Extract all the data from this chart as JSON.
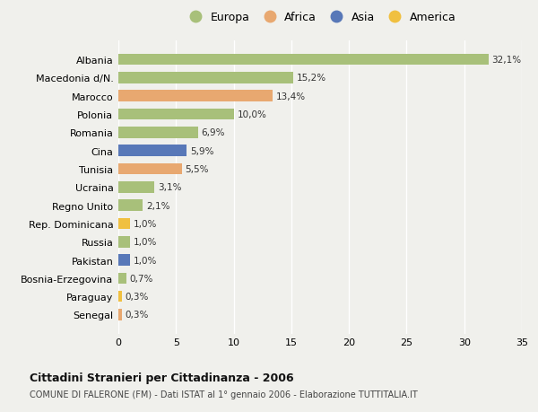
{
  "countries": [
    "Albania",
    "Macedonia d/N.",
    "Marocco",
    "Polonia",
    "Romania",
    "Cina",
    "Tunisia",
    "Ucraina",
    "Regno Unito",
    "Rep. Dominicana",
    "Russia",
    "Pakistan",
    "Bosnia-Erzegovina",
    "Paraguay",
    "Senegal"
  ],
  "values": [
    32.1,
    15.2,
    13.4,
    10.0,
    6.9,
    5.9,
    5.5,
    3.1,
    2.1,
    1.0,
    1.0,
    1.0,
    0.7,
    0.3,
    0.3
  ],
  "labels": [
    "32,1%",
    "15,2%",
    "13,4%",
    "10,0%",
    "6,9%",
    "5,9%",
    "5,5%",
    "3,1%",
    "2,1%",
    "1,0%",
    "1,0%",
    "1,0%",
    "0,7%",
    "0,3%",
    "0,3%"
  ],
  "continents": [
    "Europa",
    "Europa",
    "Africa",
    "Europa",
    "Europa",
    "Asia",
    "Africa",
    "Europa",
    "Europa",
    "America",
    "Europa",
    "Asia",
    "Europa",
    "America",
    "Africa"
  ],
  "continent_colors": {
    "Europa": "#a8c07a",
    "Africa": "#e8a870",
    "Asia": "#5878b8",
    "America": "#f0c040"
  },
  "legend_order": [
    "Europa",
    "Africa",
    "Asia",
    "America"
  ],
  "title1": "Cittadini Stranieri per Cittadinanza - 2006",
  "title2": "COMUNE DI FALERONE (FM) - Dati ISTAT al 1° gennaio 2006 - Elaborazione TUTTITALIA.IT",
  "xlim": [
    0,
    35
  ],
  "xticks": [
    0,
    5,
    10,
    15,
    20,
    25,
    30,
    35
  ],
  "background_color": "#f0f0ec",
  "plot_bg_color": "#f0f0ec",
  "grid_color": "#ffffff",
  "bar_height": 0.62
}
